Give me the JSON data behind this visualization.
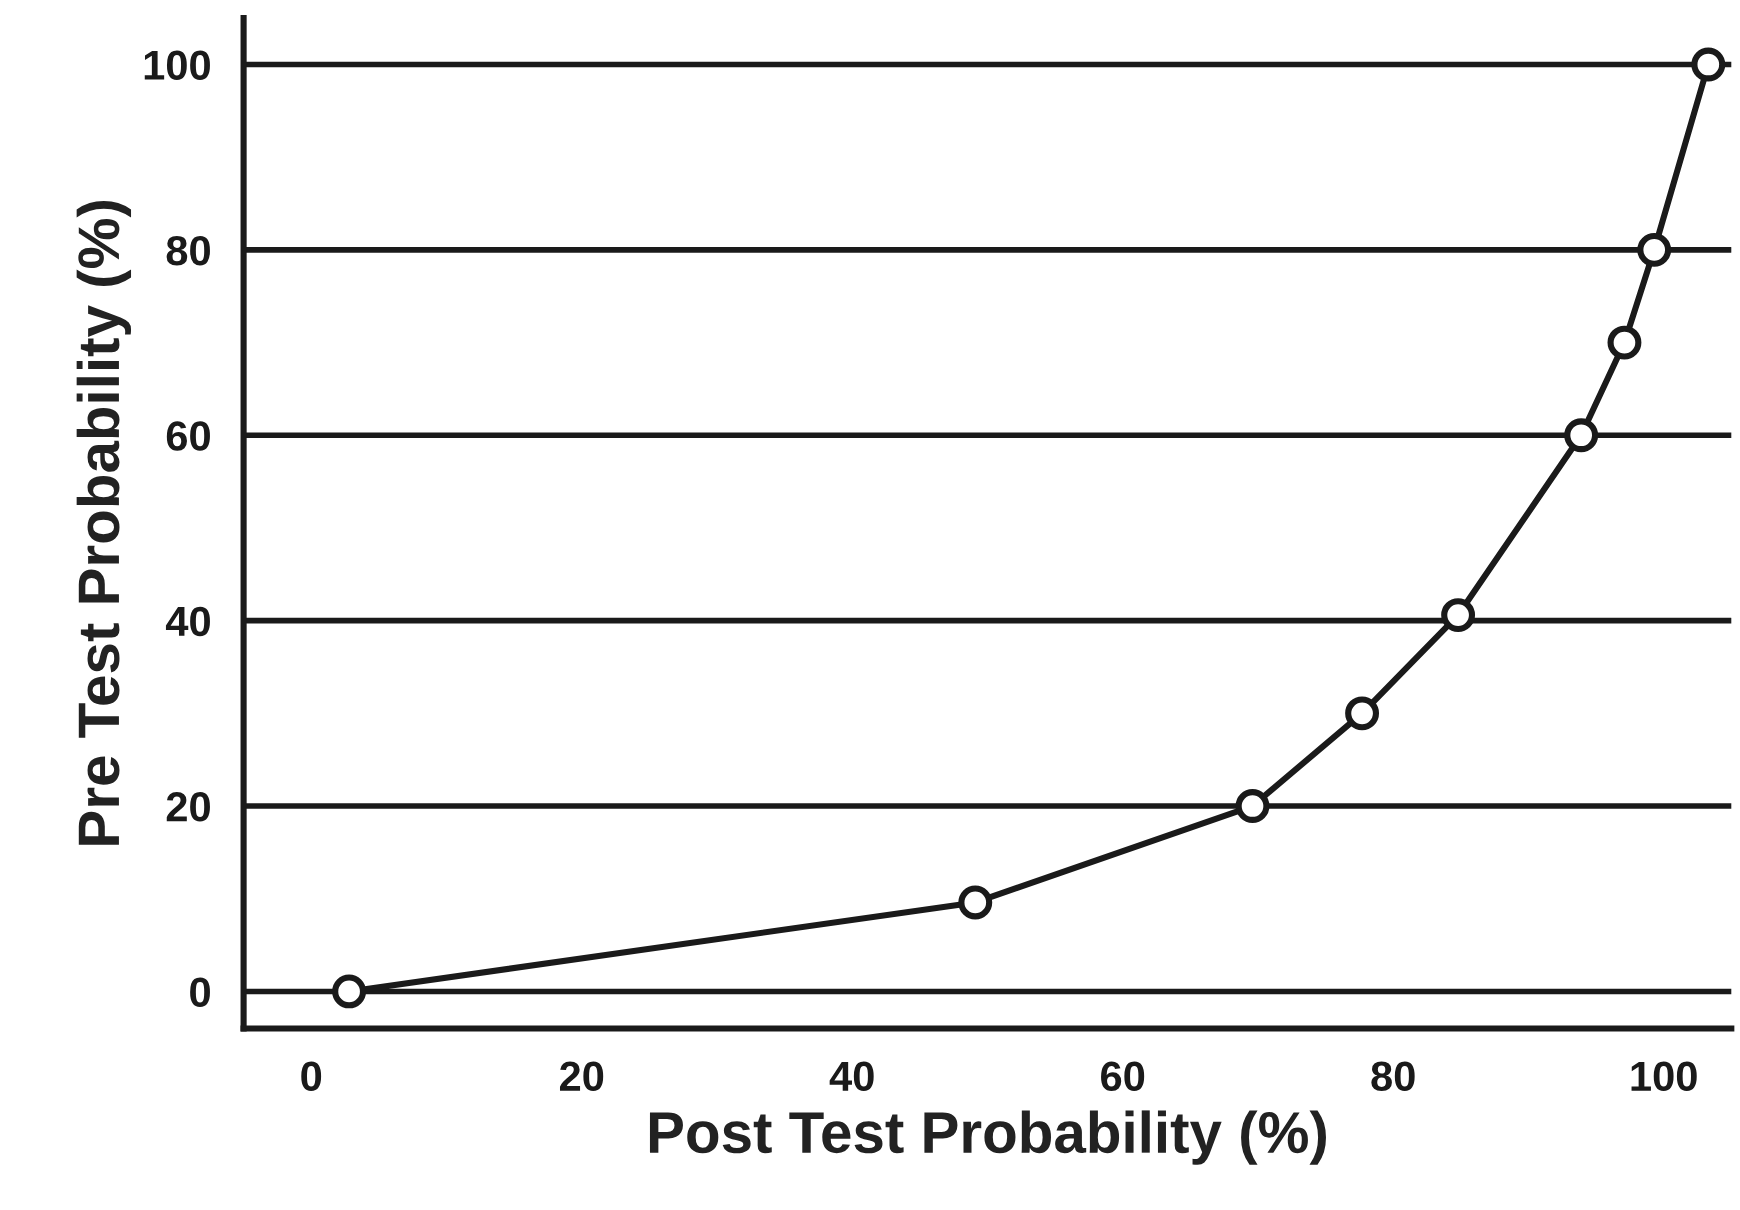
{
  "chart_data": {
    "type": "line",
    "xlabel": "Post Test Probability (%)",
    "ylabel": "Pre Test Probability (%)",
    "x": [
      2.8,
      49.1,
      69.6,
      77.7,
      84.8,
      93.9,
      97.1,
      99.3,
      103.3
    ],
    "series": [
      {
        "color": "#1a1a1a",
        "values": [
          0,
          9.6,
          20,
          30,
          40.6,
          60,
          70,
          80,
          100
        ]
      }
    ],
    "xlim": [
      -5,
      105
    ],
    "xticks": [
      0,
      20,
      40,
      60,
      80,
      100
    ],
    "ylim": [
      -4,
      105
    ],
    "yticks": [
      0,
      20,
      40,
      60,
      80,
      100
    ],
    "grid": "y",
    "marker": "circle",
    "line_style": "solid",
    "legend": false
  }
}
